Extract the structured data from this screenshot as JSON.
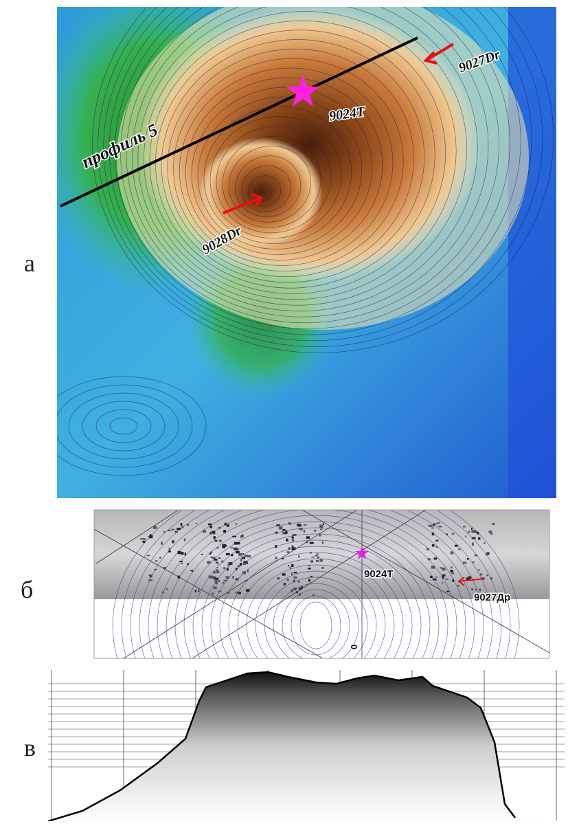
{
  "panels": [
    {
      "label": "а",
      "annotations": {
        "profile": "профиль 5",
        "star": "9024T",
        "arrow_top": "9027Dr",
        "arrow_center": "9028Dr"
      }
    },
    {
      "label": "б",
      "annotations": {
        "star": "9024T",
        "arrow": "9027Др",
        "axis_mark": "0"
      }
    },
    {
      "label": "в"
    }
  ]
}
